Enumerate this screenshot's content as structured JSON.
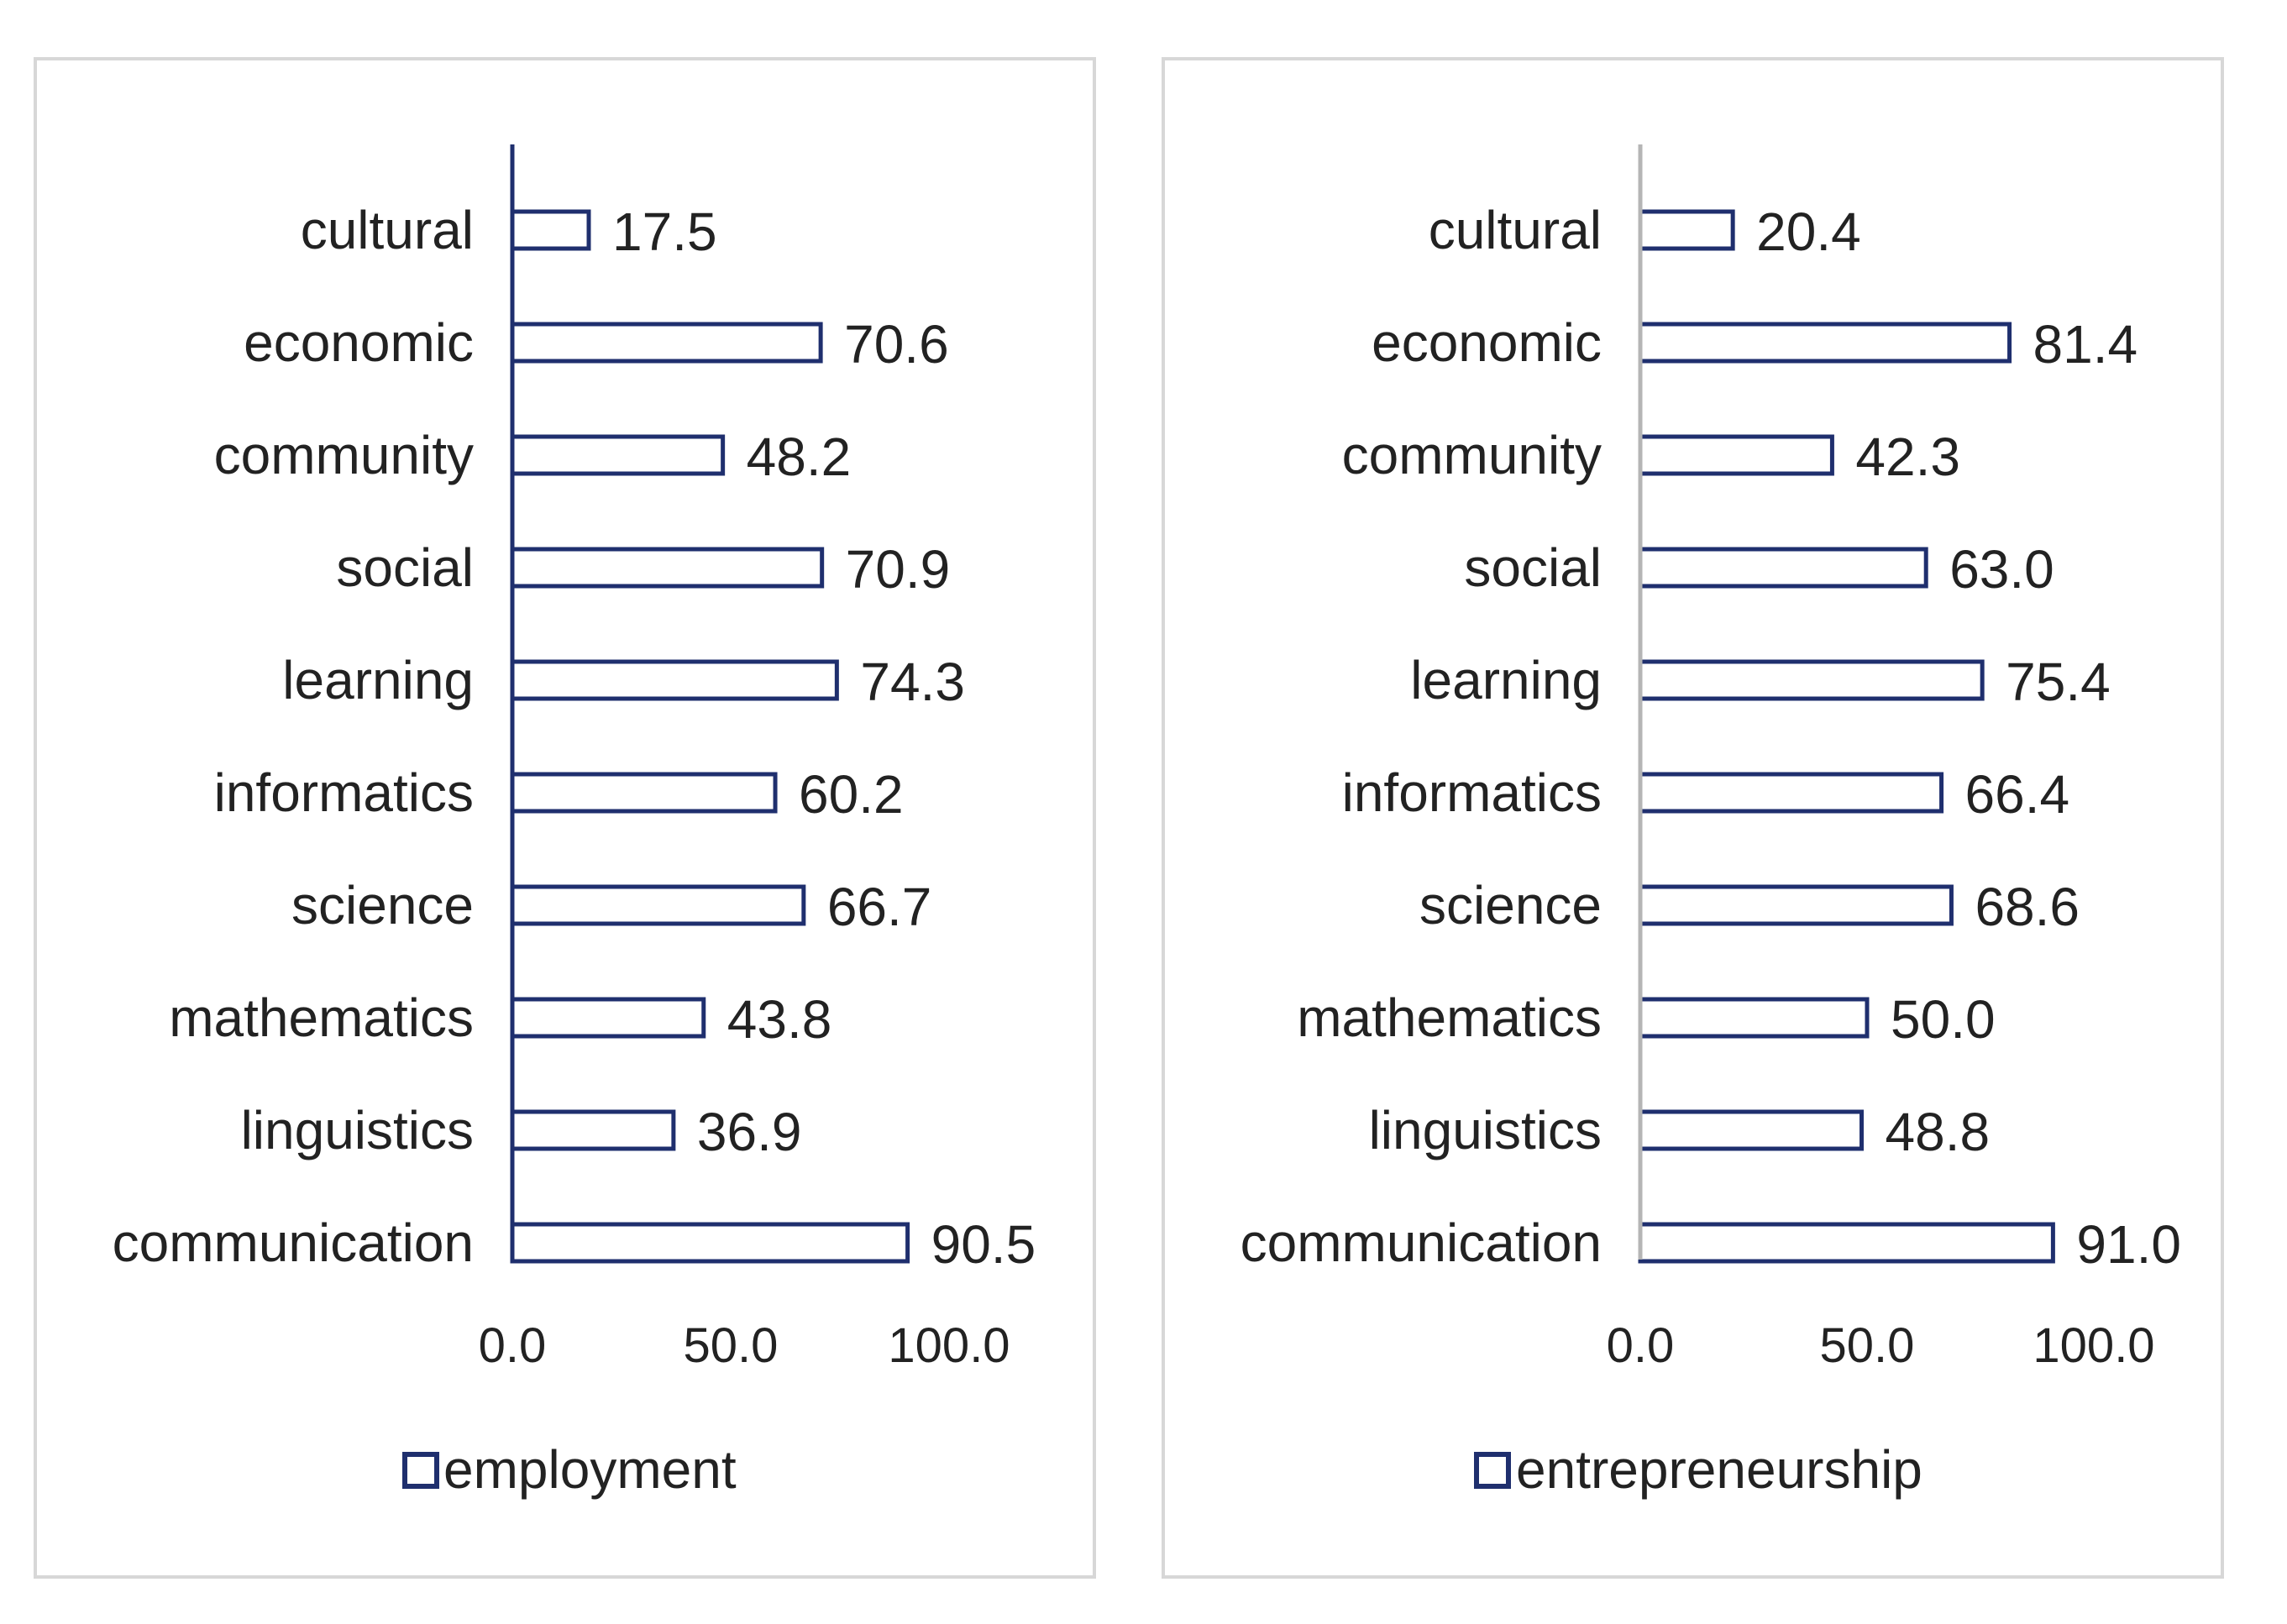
{
  "chart_data": [
    {
      "type": "bar",
      "orientation": "horizontal",
      "categories": [
        "cultural",
        "economic",
        "community",
        "social",
        "learning",
        "informatics",
        "science",
        "mathematics",
        "linguistics",
        "communication"
      ],
      "values": [
        17.5,
        70.6,
        48.2,
        70.9,
        74.3,
        60.2,
        66.7,
        43.8,
        36.9,
        90.5
      ],
      "value_labels": [
        "17.5",
        "70.6",
        "48.2",
        "70.9",
        "74.3",
        "60.2",
        "66.7",
        "43.8",
        "36.9",
        "90.5"
      ],
      "series_name": "employment",
      "xlim": [
        0,
        100
      ],
      "ticks": [
        0,
        50,
        100
      ],
      "tick_labels": [
        "0.0",
        "50.0",
        "100.0"
      ],
      "grid": false,
      "legend_position": "bottom",
      "title": "",
      "xlabel": "",
      "ylabel": ""
    },
    {
      "type": "bar",
      "orientation": "horizontal",
      "categories": [
        "cultural",
        "economic",
        "community",
        "social",
        "learning",
        "informatics",
        "science",
        "mathematics",
        "linguistics",
        "communication"
      ],
      "values": [
        20.4,
        81.4,
        42.3,
        63.0,
        75.4,
        66.4,
        68.6,
        50.0,
        48.8,
        91.0
      ],
      "value_labels": [
        "20.4",
        "81.4",
        "42.3",
        "63.0",
        "75.4",
        "66.4",
        "68.6",
        "50.0",
        "48.8",
        "91.0"
      ],
      "series_name": "entrepreneurship",
      "xlim": [
        0,
        100
      ],
      "ticks": [
        0,
        50,
        100
      ],
      "tick_labels": [
        "0.0",
        "50.0",
        "100.0"
      ],
      "grid": false,
      "legend_position": "bottom",
      "title": "",
      "xlabel": "",
      "ylabel": ""
    }
  ],
  "colors": {
    "bar_stroke": "#1f2f6e",
    "bar_fill": "#ffffff",
    "left_axis": "#1f2f6e",
    "right_axis": "#b5b5b5",
    "text": "#222222"
  },
  "icons": {
    "legend_marker": "hollow-square-icon"
  }
}
